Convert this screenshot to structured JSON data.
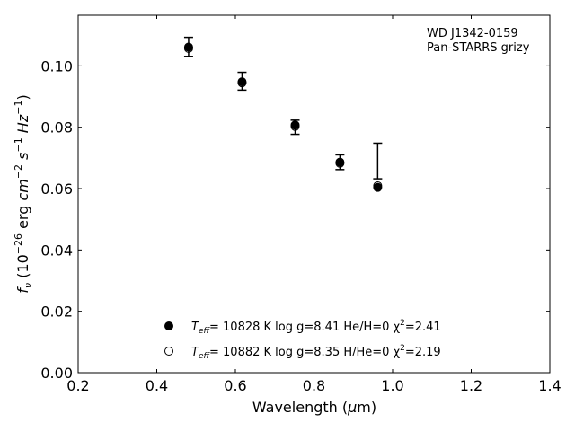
{
  "chart_data": {
    "type": "scatter",
    "annotation": [
      "WD J1342-0159",
      "Pan-STARRS grizy"
    ],
    "xlabel": "Wavelength (μm)",
    "ylabel": "f_ν (10^−26 erg cm^−2 s^−1 Hz^−1)",
    "xlim": [
      0.2,
      1.4
    ],
    "ylim": [
      0.0,
      0.1165
    ],
    "xticks": [
      0.2,
      0.4,
      0.6,
      0.8,
      1.0,
      1.2,
      1.4
    ],
    "xtick_labels": [
      "0.2",
      "0.4",
      "0.6",
      "0.8",
      "1.0",
      "1.2",
      "1.4"
    ],
    "yticks": [
      0.0,
      0.02,
      0.04,
      0.06,
      0.08,
      0.1
    ],
    "ytick_labels": [
      "0.00",
      "0.02",
      "0.04",
      "0.06",
      "0.08",
      "0.10"
    ],
    "grid": false,
    "legend_position": "lower-center",
    "observed": {
      "x": [
        0.481,
        0.617,
        0.752,
        0.866,
        0.962
      ],
      "y": [
        0.1062,
        0.095,
        0.08,
        0.0686,
        0.069
      ],
      "yerr": [
        0.0031,
        0.0029,
        0.0023,
        0.0024,
        0.0058
      ]
    },
    "series": [
      {
        "name": "He/H=0 model",
        "marker": "filled-circle",
        "color": "#000000",
        "teff_label": "T",
        "teff_sub": "eff",
        "label_rest": "= 10828 K  log g=8.41  He/H=0  χ",
        "chi_sup": "2",
        "chi_val": "=2.41",
        "x": [
          0.481,
          0.617,
          0.752,
          0.866,
          0.962
        ],
        "y": [
          0.1061,
          0.0948,
          0.0807,
          0.0686,
          0.0604
        ]
      },
      {
        "name": "H/He=0 model",
        "marker": "open-circle",
        "color": "#000000",
        "teff_label": "T",
        "teff_sub": "eff",
        "label_rest": "= 10882 K  log g=8.35  H/He=0  χ",
        "chi_sup": "2",
        "chi_val": "=2.19",
        "x": [
          0.481,
          0.617,
          0.752,
          0.866,
          0.962
        ],
        "y": [
          0.1057,
          0.0945,
          0.0803,
          0.0683,
          0.0609
        ]
      }
    ]
  }
}
